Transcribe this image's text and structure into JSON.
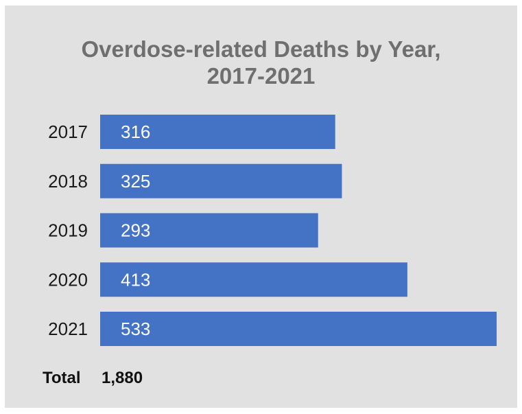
{
  "chart_data": {
    "type": "bar",
    "orientation": "horizontal",
    "title_lines": [
      "Overdose-related Deaths by Year,",
      "2017-2021"
    ],
    "categories": [
      "2017",
      "2018",
      "2019",
      "2020",
      "2021"
    ],
    "values": [
      316,
      325,
      293,
      413,
      533
    ],
    "value_labels": [
      "316",
      "325",
      "293",
      "413",
      "533"
    ],
    "bar_color": "#4472c4",
    "background_color": "#e1e1e1",
    "title_color": "#6f6f6f",
    "xlim": [
      0,
      533
    ],
    "grid": false,
    "total": {
      "label": "Total",
      "value": "1,880"
    }
  }
}
